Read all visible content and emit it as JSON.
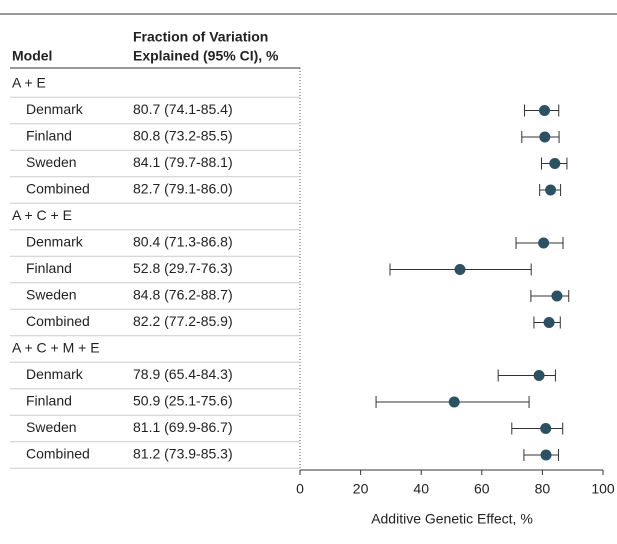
{
  "chart_data": {
    "type": "forest",
    "columns": [
      "Model",
      "Fraction of Variation",
      "Explained (95% CI), %"
    ],
    "groups": [
      {
        "label": "A + E",
        "rows": [
          {
            "name": "Denmark",
            "label": "80.7 (74.1-85.4)",
            "value": 80.7,
            "lower": 74.1,
            "upper": 85.4
          },
          {
            "name": "Finland",
            "label": "80.8 (73.2-85.5)",
            "value": 80.8,
            "lower": 73.2,
            "upper": 85.5
          },
          {
            "name": "Sweden",
            "label": "84.1 (79.7-88.1)",
            "value": 84.1,
            "lower": 79.7,
            "upper": 88.1
          },
          {
            "name": "Combined",
            "label": "82.7 (79.1-86.0)",
            "value": 82.7,
            "lower": 79.1,
            "upper": 86.0
          }
        ]
      },
      {
        "label": "A + C + E",
        "rows": [
          {
            "name": "Denmark",
            "label": "80.4 (71.3-86.8)",
            "value": 80.4,
            "lower": 71.3,
            "upper": 86.8
          },
          {
            "name": "Finland",
            "label": "52.8 (29.7-76.3)",
            "value": 52.8,
            "lower": 29.7,
            "upper": 76.3
          },
          {
            "name": "Sweden",
            "label": "84.8 (76.2-88.7)",
            "value": 84.8,
            "lower": 76.2,
            "upper": 88.7
          },
          {
            "name": "Combined",
            "label": "82.2 (77.2-85.9)",
            "value": 82.2,
            "lower": 77.2,
            "upper": 85.9
          }
        ]
      },
      {
        "label": "A + C + M + E",
        "rows": [
          {
            "name": "Denmark",
            "label": "78.9 (65.4-84.3)",
            "value": 78.9,
            "lower": 65.4,
            "upper": 84.3
          },
          {
            "name": "Finland",
            "label": "50.9 (25.1-75.6)",
            "value": 50.9,
            "lower": 25.1,
            "upper": 75.6
          },
          {
            "name": "Sweden",
            "label": "81.1 (69.9-86.7)",
            "value": 81.1,
            "lower": 69.9,
            "upper": 86.7
          },
          {
            "name": "Combined",
            "label": "81.2 (73.9-85.3)",
            "value": 81.2,
            "lower": 73.9,
            "upper": 85.3
          }
        ]
      }
    ],
    "xlabel": "Additive Genetic Effect, %",
    "xlim": [
      0,
      100
    ],
    "xticks": [
      0,
      20,
      40,
      60,
      80,
      100
    ],
    "color": "#2b5163"
  }
}
